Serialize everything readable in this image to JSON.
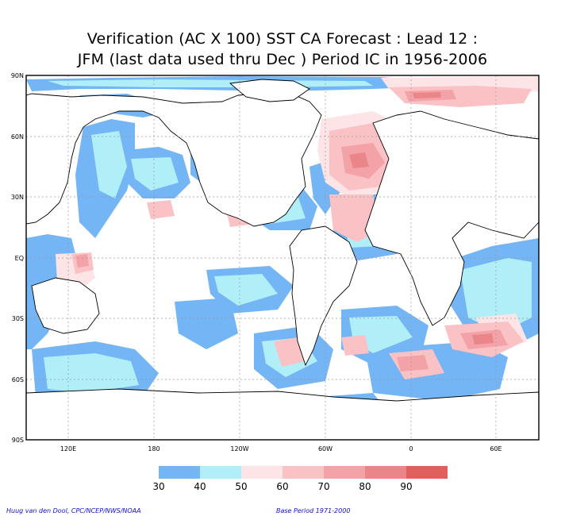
{
  "title_line1": "Verification (AC X 100) SST CA Forecast : Lead 12 :",
  "title_line2": "JFM (last data used thru Dec ) Period IC in 1956-2006",
  "lat_labels": [
    "90N",
    "60N",
    "30N",
    "EQ",
    "30S",
    "60S",
    "90S"
  ],
  "lon_labels": [
    "120E",
    "180",
    "120W",
    "60W",
    "0",
    "60E"
  ],
  "colorbar": {
    "boundaries": [
      "30",
      "40",
      "50",
      "60",
      "70",
      "80",
      "90"
    ],
    "colors": [
      "#74b5f5",
      "#b0eef8",
      "#fde4e6",
      "#fac2c5",
      "#f3a3a7",
      "#ea8589",
      "#e0605e"
    ]
  },
  "credit": "Huug van den Dool, CPC/NCEP/NWS/NOAA",
  "base_period": "Base Period 1971-2000",
  "colors": {
    "land_outline": "#000000",
    "grid": "#9a9a9a",
    "ocean_background": "#ffffff",
    "footer_text": "#1010d0"
  }
}
